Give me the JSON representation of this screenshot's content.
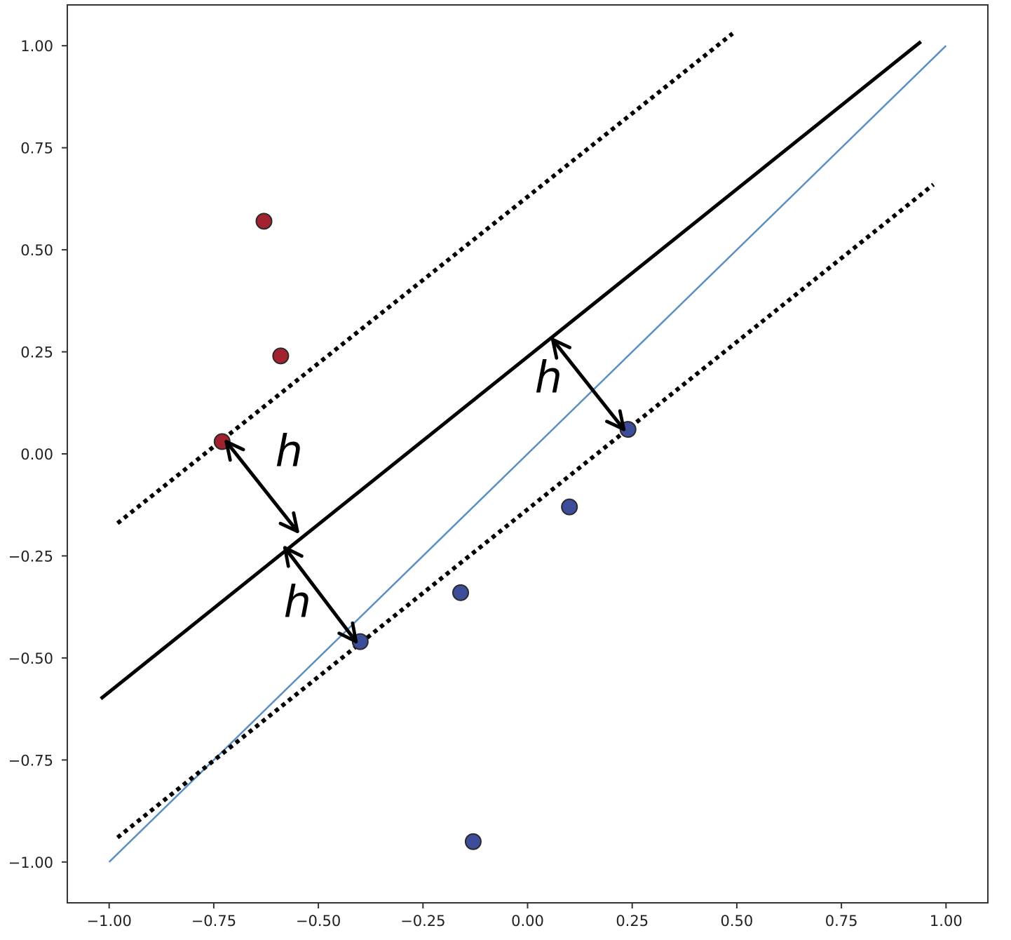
{
  "chart_data": {
    "type": "scatter",
    "title": "",
    "xlabel": "",
    "ylabel": "",
    "xlim": [
      -1.1,
      1.1
    ],
    "ylim": [
      -1.1,
      1.1
    ],
    "grid": false,
    "x_ticks": [
      {
        "value": -1.0,
        "label": "−1.00"
      },
      {
        "value": -0.75,
        "label": "−0.75"
      },
      {
        "value": -0.5,
        "label": "−0.50"
      },
      {
        "value": -0.25,
        "label": "−0.25"
      },
      {
        "value": 0.0,
        "label": "0.00"
      },
      {
        "value": 0.25,
        "label": "0.25"
      },
      {
        "value": 0.5,
        "label": "0.50"
      },
      {
        "value": 0.75,
        "label": "0.75"
      },
      {
        "value": 1.0,
        "label": "1.00"
      }
    ],
    "y_ticks": [
      {
        "value": -1.0,
        "label": "−1.00"
      },
      {
        "value": -0.75,
        "label": "−0.75"
      },
      {
        "value": -0.5,
        "label": "−0.50"
      },
      {
        "value": -0.25,
        "label": "−0.25"
      },
      {
        "value": 0.0,
        "label": "0.00"
      },
      {
        "value": 0.25,
        "label": "0.25"
      },
      {
        "value": 0.5,
        "label": "0.50"
      },
      {
        "value": 0.75,
        "label": "0.75"
      },
      {
        "value": 1.0,
        "label": "1.00"
      }
    ],
    "series": [
      {
        "class": "red",
        "color": "#a3222f",
        "points": [
          {
            "x": -0.63,
            "y": 0.57
          },
          {
            "x": -0.59,
            "y": 0.24
          },
          {
            "x": -0.73,
            "y": 0.03
          }
        ]
      },
      {
        "class": "blue",
        "color": "#3d4d9a",
        "points": [
          {
            "x": 0.24,
            "y": 0.06
          },
          {
            "x": 0.1,
            "y": -0.13
          },
          {
            "x": -0.16,
            "y": -0.34
          },
          {
            "x": -0.4,
            "y": -0.46
          },
          {
            "x": -0.13,
            "y": -0.95
          }
        ]
      }
    ],
    "lines": [
      {
        "kind": "true-boundary",
        "color": "#5b8fc2",
        "style": "solid",
        "from": {
          "x": -1.0,
          "y": -1.0
        },
        "to": {
          "x": 1.0,
          "y": 1.0
        }
      },
      {
        "kind": "decision-boundary",
        "color": "#000000",
        "style": "solid",
        "from": {
          "x": -1.02,
          "y": -0.6
        },
        "to": {
          "x": 0.94,
          "y": 1.01
        }
      },
      {
        "kind": "margin-upper",
        "color": "#000000",
        "style": "dotted",
        "from": {
          "x": -0.98,
          "y": -0.17
        },
        "to": {
          "x": 0.49,
          "y": 1.03
        }
      },
      {
        "kind": "margin-lower",
        "color": "#000000",
        "style": "dotted",
        "from": {
          "x": -0.98,
          "y": -0.94
        },
        "to": {
          "x": 0.97,
          "y": 0.66
        }
      }
    ],
    "annotations": [
      {
        "text": "h",
        "from": {
          "x": -0.72,
          "y": 0.03
        },
        "to": {
          "x": -0.55,
          "y": -0.19
        },
        "label_at": {
          "x": -0.57,
          "y": -0.03
        }
      },
      {
        "text": "h",
        "from": {
          "x": -0.58,
          "y": -0.23
        },
        "to": {
          "x": -0.41,
          "y": -0.46
        },
        "label_at": {
          "x": -0.55,
          "y": -0.4
        }
      },
      {
        "text": "h",
        "from": {
          "x": 0.06,
          "y": 0.28
        },
        "to": {
          "x": 0.23,
          "y": 0.06
        },
        "label_at": {
          "x": 0.05,
          "y": 0.15
        }
      }
    ]
  }
}
